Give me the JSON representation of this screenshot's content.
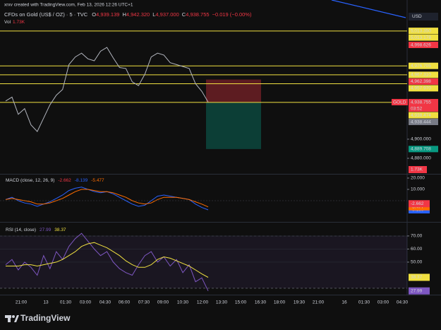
{
  "header": {
    "credit": "xrxv created with TradingView.com, Feb 13, 2026 12:26 UTC+1",
    "symbol": "CFDs on Gold (US$ / OZ) · 5 · TVC",
    "ohlc": [
      {
        "key": "O",
        "value": "4,939.139"
      },
      {
        "key": "H",
        "value": "4,942.320"
      },
      {
        "key": "L",
        "value": "4,937.000"
      },
      {
        "key": "C",
        "value": "4,938.755"
      }
    ],
    "change": "−0.019 (−0.00%)",
    "volume_label": "Vol",
    "volume": "1.73K"
  },
  "currency": "USD",
  "chart_data": [
    {
      "type": "line",
      "series": [
        {
          "color": "#b2b5be",
          "values": [
            4940,
            4944,
            4926,
            4932,
            4915,
            4908,
            4922,
            4936,
            4946,
            4952,
            4978,
            4986,
            4990,
            4984,
            4982,
            4992,
            4996,
            4985,
            4975,
            4974,
            4960,
            4956,
            4968,
            4986,
            4990,
            4988,
            4980,
            4978,
            4976,
            4974,
            4958,
            4950,
            4938.755
          ]
        }
      ],
      "ylim": [
        4864.5,
        5034.5
      ],
      "yticks": [
        {
          "value": 4900,
          "label": "4,900.000"
        },
        {
          "value": 4880,
          "label": "4,880.000"
        }
      ],
      "markers": [
        {
          "label": "5,013.350",
          "value": 5013.35,
          "color": "#f0e040"
        },
        {
          "label": "5,013.178",
          "value": 5013.178,
          "color": "#f0e040",
          "line": true
        },
        {
          "label": "4,998.626",
          "value": 4998.626,
          "color": "#f23645"
        },
        {
          "label": "4,976.705",
          "value": 4976.705,
          "color": "#f0e040",
          "line": true
        },
        {
          "label": "4,967.310",
          "value": 4967.31,
          "color": "#f0e040",
          "line": true
        },
        {
          "label": "4,962.398",
          "value": 4962.398,
          "color": "#f23645",
          "role": "stop"
        },
        {
          "label": "4,957.970",
          "value": 4957.97,
          "color": "#f0e040",
          "line": true
        },
        {
          "label": "4,938.755",
          "value": 4938.755,
          "color": "#f23645",
          "role": "entry",
          "tag": "GOLD",
          "countdown": "03:52"
        },
        {
          "label": "4,938.474",
          "value": 4938.474,
          "color": "#f0e040",
          "line": true
        },
        {
          "label": "4,938.444",
          "value": 4938.444,
          "color": "#787b86"
        },
        {
          "label": "4,889.708",
          "value": 4889.708,
          "color": "#089981",
          "role": "target"
        }
      ]
    },
    {
      "type": "line",
      "title": "MACD (close, 12, 26, 9)",
      "histogram": -2.662,
      "histogram_color": "#f23645",
      "series": [
        {
          "color": "#2962ff",
          "values": [
            1,
            3,
            0,
            -2,
            -3,
            -5,
            -3,
            -1,
            2,
            5,
            9,
            11,
            12,
            10,
            8,
            7,
            8,
            6,
            3,
            0,
            -3,
            -5,
            -4,
            0,
            4,
            5,
            4,
            3,
            2,
            1,
            -3,
            -6,
            -8.139
          ]
        },
        {
          "color": "#ff6d00",
          "values": [
            1,
            2,
            1,
            0,
            -1,
            -3,
            -3,
            -2,
            0,
            2,
            5,
            8,
            10,
            10,
            9,
            8,
            8,
            7,
            5,
            3,
            0,
            -2,
            -3,
            -2,
            1,
            3,
            3,
            3,
            2,
            1,
            -1,
            -3,
            -5.477
          ]
        }
      ],
      "ylim": [
        -17.5,
        22.5
      ],
      "yticks": [
        {
          "value": 20,
          "label": "20.000"
        },
        {
          "value": 10,
          "label": "10.000"
        }
      ]
    },
    {
      "type": "line",
      "title": "RSI (14, close)",
      "series": [
        {
          "color": "#7e57c2",
          "values": [
            48,
            52,
            44,
            50,
            46,
            40,
            55,
            45,
            58,
            52,
            62,
            68,
            72,
            66,
            60,
            55,
            58,
            50,
            45,
            42,
            40,
            48,
            55,
            58,
            50,
            54,
            47,
            52,
            42,
            48,
            35,
            38,
            27.99
          ]
        },
        {
          "color": "#f0e040",
          "values": [
            47,
            47,
            47,
            48,
            48,
            47,
            48,
            49,
            50,
            52,
            55,
            58,
            62,
            64,
            65,
            63,
            61,
            58,
            55,
            51,
            48,
            46,
            46,
            48,
            52,
            54,
            53,
            51,
            49,
            47,
            44,
            41,
            38.37
          ]
        }
      ],
      "ylim": [
        26.2,
        78.6
      ],
      "yticks": [
        {
          "value": 70,
          "label": "70.00"
        },
        {
          "value": 60,
          "label": "60.00"
        },
        {
          "value": 50,
          "label": "50.00"
        }
      ],
      "band": [
        30,
        70
      ]
    }
  ],
  "time_axis": [
    "21:00",
    "13",
    "01:30",
    "03:00",
    "04:30",
    "06:00",
    "07:30",
    "09:00",
    "10:30",
    "12:00",
    "13:30",
    "15:00",
    "16:30",
    "18:00",
    "19:30",
    "21:00",
    "16",
    "01:30",
    "03:00",
    "04:30"
  ],
  "footer": "TradingView"
}
